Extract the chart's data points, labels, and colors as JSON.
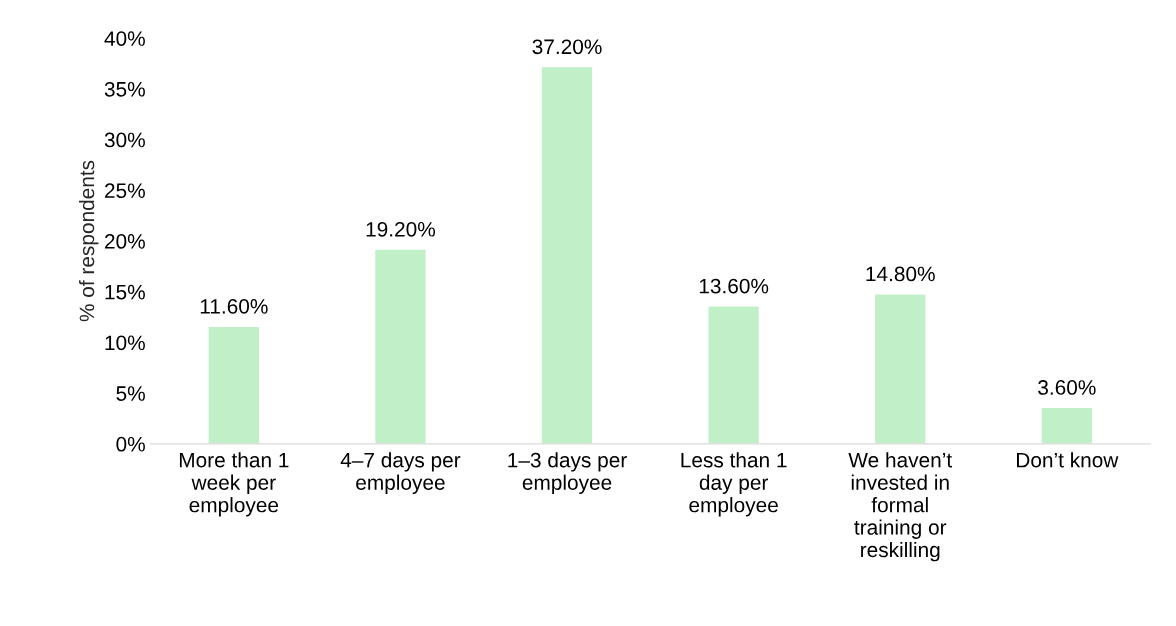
{
  "chart_data": {
    "type": "bar",
    "ylabel": "% of respondents",
    "categories": [
      "More than 1\nweek per\nemployee",
      "4–7 days per\nemployee",
      "1–3 days per\nemployee",
      "Less than 1\nday per\nemployee",
      "We haven’t\ninvested in\nformal\ntraining or\nreskilling",
      "Don’t know"
    ],
    "values": [
      11.6,
      19.2,
      37.2,
      13.6,
      14.8,
      3.6
    ],
    "value_labels": [
      "11.60%",
      "19.20%",
      "37.20%",
      "13.60%",
      "14.80%",
      "3.60%"
    ],
    "color": "#c1f0c8",
    "ylim": [
      0,
      40
    ],
    "yticks": [
      {
        "value": 0,
        "label": "0%"
      },
      {
        "value": 5,
        "label": "5%"
      },
      {
        "value": 10,
        "label": "10%"
      },
      {
        "value": 15,
        "label": "15%"
      },
      {
        "value": 20,
        "label": "20%"
      },
      {
        "value": 25,
        "label": "25%"
      },
      {
        "value": 30,
        "label": "30%"
      },
      {
        "value": 35,
        "label": "35%"
      },
      {
        "value": 40,
        "label": "40%"
      }
    ],
    "grid": false,
    "legend": false
  }
}
